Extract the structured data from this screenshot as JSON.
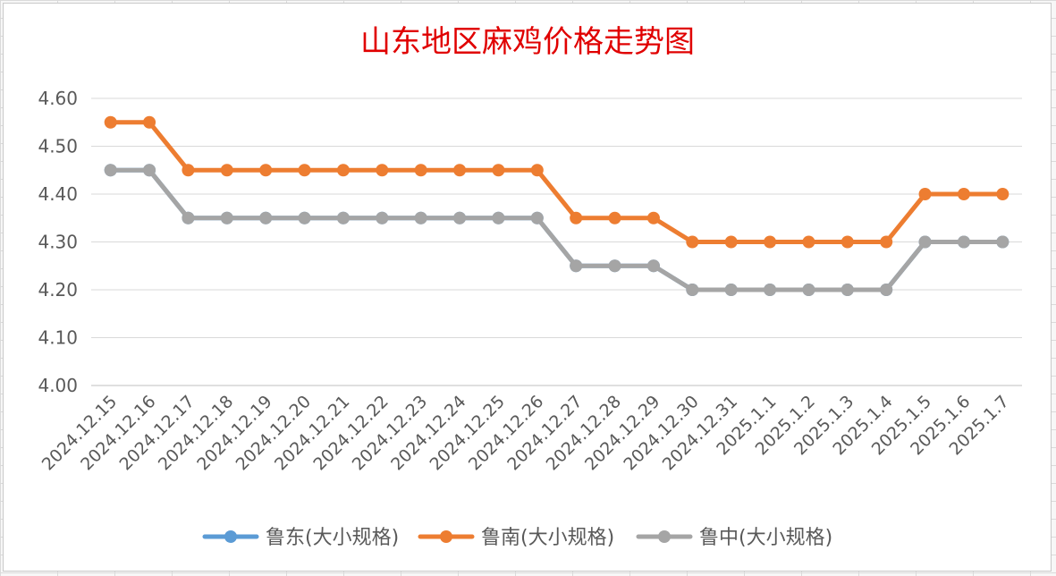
{
  "chart_data": {
    "type": "line",
    "title": "山东地区麻鸡价格走势图",
    "xlabel": "",
    "ylabel": "",
    "categories": [
      "2024.12.15",
      "2024.12.16",
      "2024.12.17",
      "2024.12.18",
      "2024.12.19",
      "2024.12.20",
      "2024.12.21",
      "2024.12.22",
      "2024.12.23",
      "2024.12.24",
      "2024.12.25",
      "2024.12.26",
      "2024.12.27",
      "2024.12.28",
      "2024.12.29",
      "2024.12.30",
      "2024.12.31",
      "2025.1.1",
      "2025.1.2",
      "2025.1.3",
      "2025.1.4",
      "2025.1.5",
      "2025.1.6",
      "2025.1.7"
    ],
    "y_ticks": [
      "4.00",
      "4.10",
      "4.20",
      "4.30",
      "4.40",
      "4.50",
      "4.60"
    ],
    "ylim": [
      4.0,
      4.6
    ],
    "grid": true,
    "legend_position": "bottom",
    "series": [
      {
        "name": "鲁东(大小规格)",
        "color": "#5b9bd5",
        "values": [
          4.45,
          4.45,
          4.35,
          4.35,
          4.35,
          4.35,
          4.35,
          4.35,
          4.35,
          4.35,
          4.35,
          4.35,
          4.25,
          4.25,
          4.25,
          4.2,
          4.2,
          4.2,
          4.2,
          4.2,
          4.2,
          4.3,
          4.3,
          4.3
        ]
      },
      {
        "name": "鲁南(大小规格)",
        "color": "#ed7d31",
        "values": [
          4.55,
          4.55,
          4.45,
          4.45,
          4.45,
          4.45,
          4.45,
          4.45,
          4.45,
          4.45,
          4.45,
          4.45,
          4.35,
          4.35,
          4.35,
          4.3,
          4.3,
          4.3,
          4.3,
          4.3,
          4.3,
          4.4,
          4.4,
          4.4
        ]
      },
      {
        "name": "鲁中(大小规格)",
        "color": "#a5a5a5",
        "values": [
          4.45,
          4.45,
          4.35,
          4.35,
          4.35,
          4.35,
          4.35,
          4.35,
          4.35,
          4.35,
          4.35,
          4.35,
          4.25,
          4.25,
          4.25,
          4.2,
          4.2,
          4.2,
          4.2,
          4.2,
          4.2,
          4.3,
          4.3,
          4.3
        ]
      }
    ]
  }
}
